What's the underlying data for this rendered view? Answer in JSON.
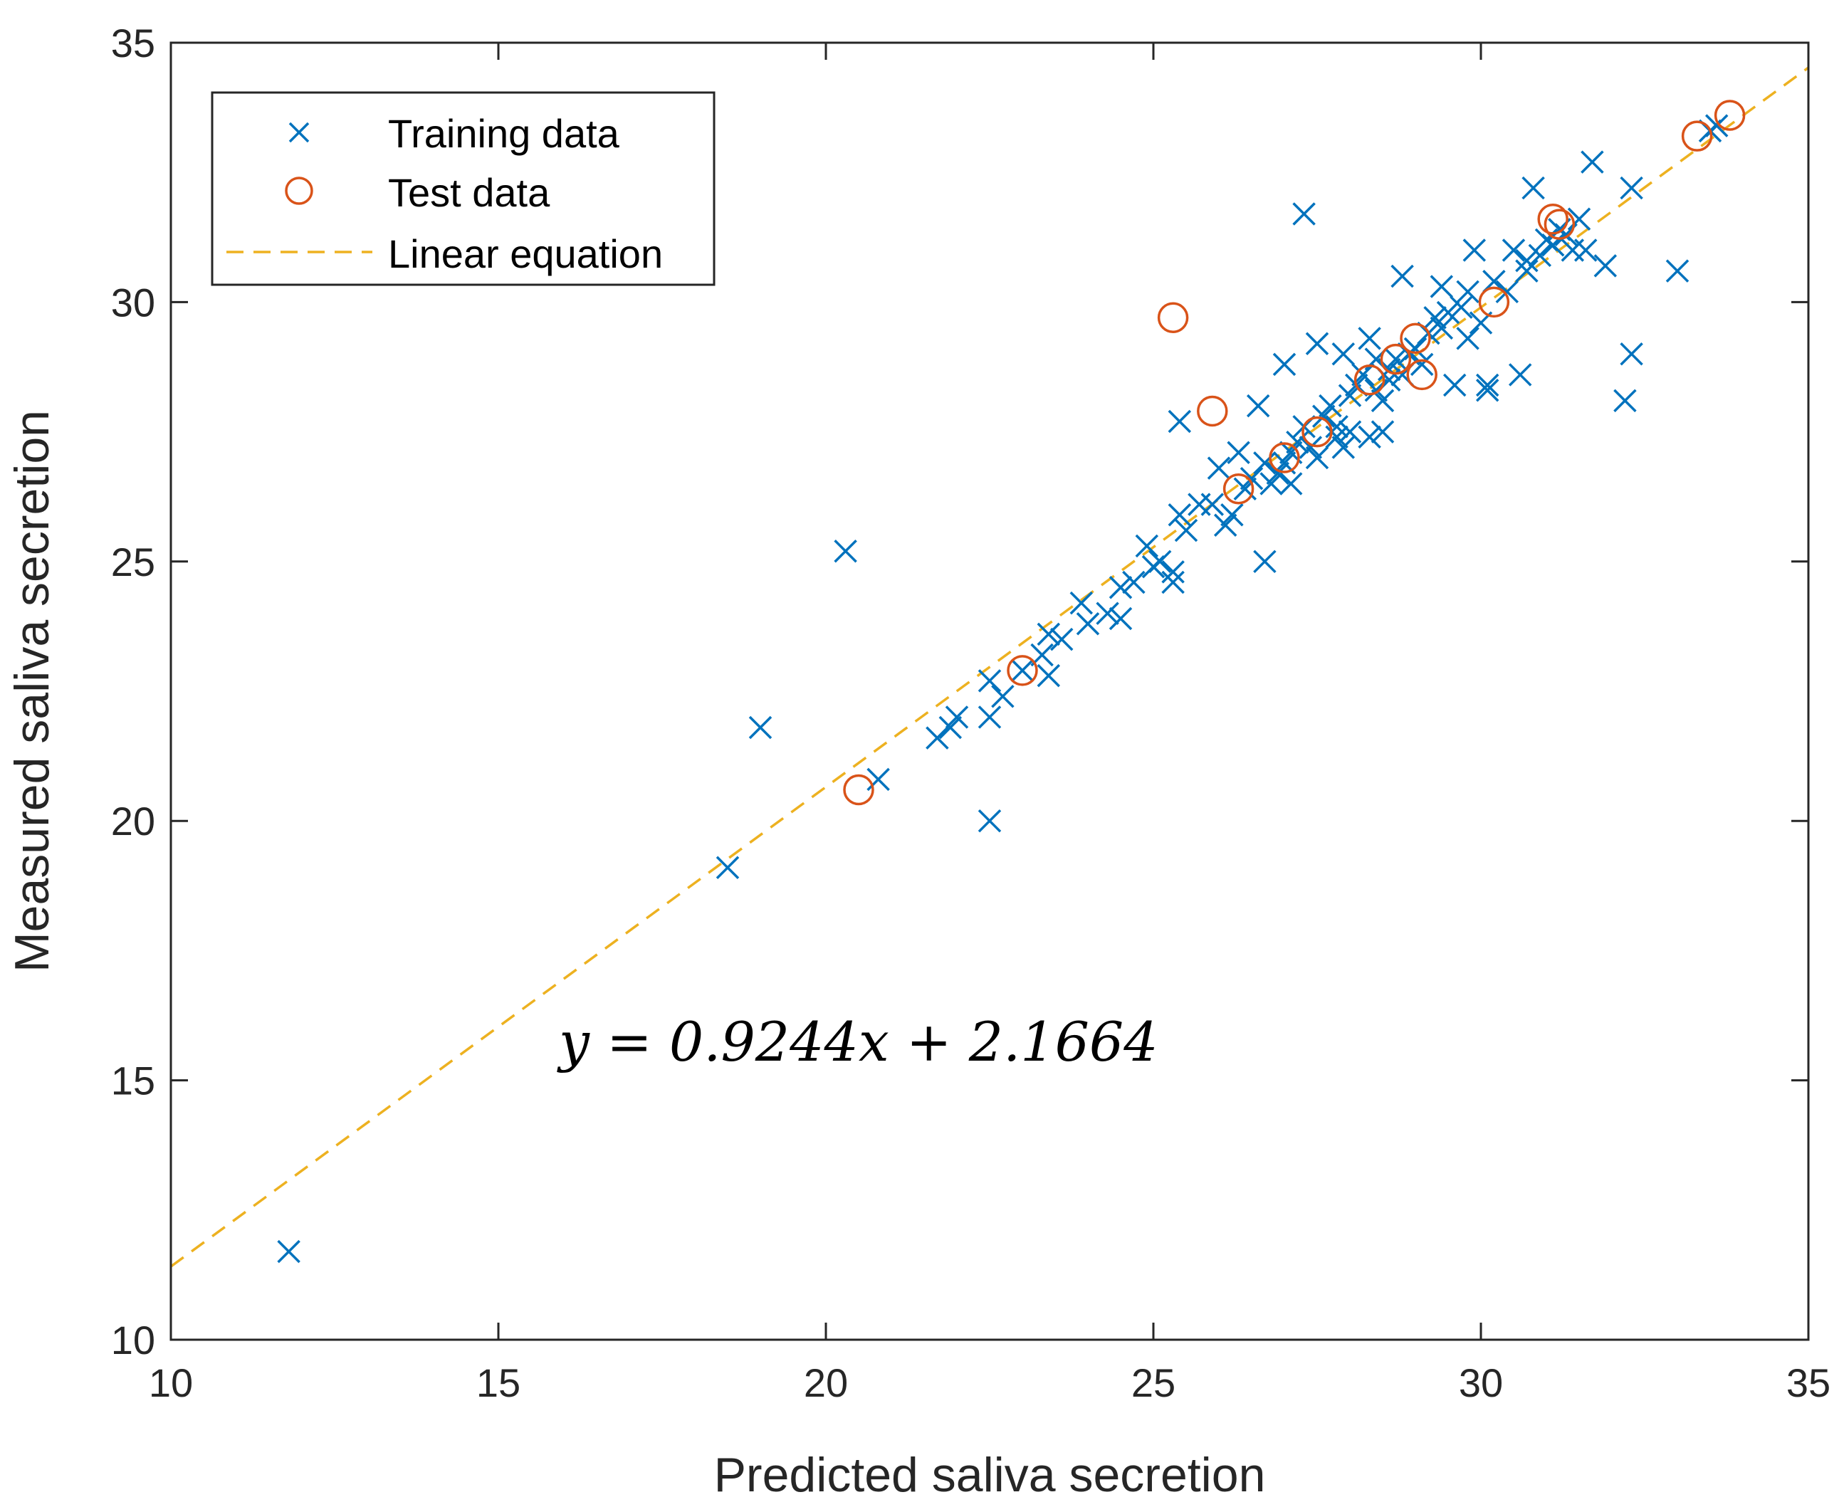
{
  "chart_data": {
    "type": "scatter",
    "title": "",
    "xlabel": "Predicted saliva secretion",
    "ylabel": "Measured saliva secretion",
    "xlim": [
      10,
      35
    ],
    "ylim": [
      10,
      35
    ],
    "xticks": [
      10,
      15,
      20,
      25,
      30,
      35
    ],
    "yticks": [
      10,
      15,
      20,
      25,
      30,
      35
    ],
    "grid": false,
    "legend_position": "top-left",
    "annotation": "y = 0.9244x + 2.1664",
    "colors": {
      "training": "#0072BD",
      "test": "#D95319",
      "fit": "#EDB120",
      "axis": "#262626"
    },
    "fit_line": {
      "name": "Linear equation",
      "slope": 0.9244,
      "intercept": 2.1664,
      "x_range": [
        10,
        35
      ]
    },
    "series": [
      {
        "name": "Training data",
        "marker": "x",
        "points": [
          [
            11.8,
            11.7
          ],
          [
            18.5,
            19.1
          ],
          [
            19.0,
            21.8
          ],
          [
            20.3,
            25.2
          ],
          [
            20.8,
            20.8
          ],
          [
            21.7,
            21.6
          ],
          [
            21.9,
            21.8
          ],
          [
            22.0,
            22.0
          ],
          [
            22.5,
            22.7
          ],
          [
            22.5,
            22.0
          ],
          [
            22.5,
            20.0
          ],
          [
            22.7,
            22.4
          ],
          [
            23.0,
            22.9
          ],
          [
            23.3,
            23.2
          ],
          [
            23.4,
            23.6
          ],
          [
            23.4,
            22.8
          ],
          [
            23.6,
            23.5
          ],
          [
            23.9,
            24.2
          ],
          [
            24.0,
            23.8
          ],
          [
            24.3,
            24.0
          ],
          [
            24.5,
            24.5
          ],
          [
            24.5,
            23.9
          ],
          [
            24.7,
            24.6
          ],
          [
            24.9,
            25.3
          ],
          [
            25.0,
            24.9
          ],
          [
            25.1,
            25.0
          ],
          [
            25.3,
            24.6
          ],
          [
            25.3,
            24.8
          ],
          [
            25.4,
            27.7
          ],
          [
            25.4,
            25.9
          ],
          [
            25.5,
            25.6
          ],
          [
            25.7,
            26.1
          ],
          [
            25.9,
            26.1
          ],
          [
            26.0,
            26.8
          ],
          [
            26.1,
            25.7
          ],
          [
            26.2,
            25.9
          ],
          [
            26.3,
            27.1
          ],
          [
            26.4,
            26.4
          ],
          [
            26.5,
            26.6
          ],
          [
            26.6,
            28.0
          ],
          [
            26.7,
            25.0
          ],
          [
            26.7,
            26.9
          ],
          [
            26.8,
            26.5
          ],
          [
            26.9,
            26.7
          ],
          [
            27.0,
            28.8
          ],
          [
            27.0,
            26.9
          ],
          [
            27.1,
            27.1
          ],
          [
            27.1,
            26.5
          ],
          [
            27.2,
            27.3
          ],
          [
            27.3,
            31.7
          ],
          [
            27.3,
            27.6
          ],
          [
            27.4,
            27.2
          ],
          [
            27.5,
            29.2
          ],
          [
            27.5,
            27.0
          ],
          [
            27.6,
            27.8
          ],
          [
            27.7,
            28.0
          ],
          [
            27.8,
            27.4
          ],
          [
            27.8,
            27.6
          ],
          [
            27.9,
            29.0
          ],
          [
            27.9,
            27.2
          ],
          [
            28.0,
            28.2
          ],
          [
            28.0,
            27.5
          ],
          [
            28.1,
            28.4
          ],
          [
            28.2,
            28.6
          ],
          [
            28.3,
            29.3
          ],
          [
            28.3,
            27.4
          ],
          [
            28.4,
            28.9
          ],
          [
            28.4,
            28.3
          ],
          [
            28.5,
            28.1
          ],
          [
            28.5,
            27.5
          ],
          [
            28.6,
            28.5
          ],
          [
            28.6,
            28.7
          ],
          [
            28.7,
            28.9
          ],
          [
            28.8,
            30.5
          ],
          [
            28.8,
            28.6
          ],
          [
            28.9,
            29.0
          ],
          [
            29.0,
            29.1
          ],
          [
            29.1,
            28.8
          ],
          [
            29.2,
            29.4
          ],
          [
            29.3,
            29.7
          ],
          [
            29.4,
            30.3
          ],
          [
            29.4,
            29.5
          ],
          [
            29.5,
            29.8
          ],
          [
            29.6,
            28.4
          ],
          [
            29.7,
            29.9
          ],
          [
            29.8,
            29.3
          ],
          [
            29.8,
            30.2
          ],
          [
            29.9,
            31.0
          ],
          [
            30.0,
            29.6
          ],
          [
            30.1,
            28.4
          ],
          [
            30.1,
            28.3
          ],
          [
            30.2,
            30.4
          ],
          [
            30.4,
            30.2
          ],
          [
            30.5,
            31.0
          ],
          [
            30.6,
            28.6
          ],
          [
            30.7,
            30.8
          ],
          [
            30.7,
            30.6
          ],
          [
            30.8,
            32.2
          ],
          [
            30.9,
            30.9
          ],
          [
            31.0,
            31.2
          ],
          [
            31.1,
            31.1
          ],
          [
            31.2,
            31.4
          ],
          [
            31.3,
            31.3
          ],
          [
            31.4,
            31.0
          ],
          [
            31.5,
            31.6
          ],
          [
            31.6,
            31.0
          ],
          [
            31.7,
            32.7
          ],
          [
            31.9,
            30.7
          ],
          [
            32.2,
            28.1
          ],
          [
            32.3,
            32.2
          ],
          [
            32.3,
            29.0
          ],
          [
            33.0,
            30.6
          ],
          [
            33.5,
            33.3
          ],
          [
            33.6,
            33.4
          ]
        ]
      },
      {
        "name": "Test data",
        "marker": "o",
        "points": [
          [
            20.5,
            20.6
          ],
          [
            23.0,
            22.9
          ],
          [
            25.3,
            29.7
          ],
          [
            25.9,
            27.9
          ],
          [
            26.3,
            26.4
          ],
          [
            27.0,
            27.0
          ],
          [
            27.5,
            27.5
          ],
          [
            28.3,
            28.5
          ],
          [
            28.7,
            28.9
          ],
          [
            29.0,
            29.3
          ],
          [
            29.1,
            28.6
          ],
          [
            30.2,
            30.0
          ],
          [
            31.1,
            31.6
          ],
          [
            31.2,
            31.5
          ],
          [
            33.3,
            33.2
          ],
          [
            33.8,
            33.6
          ]
        ]
      }
    ]
  }
}
